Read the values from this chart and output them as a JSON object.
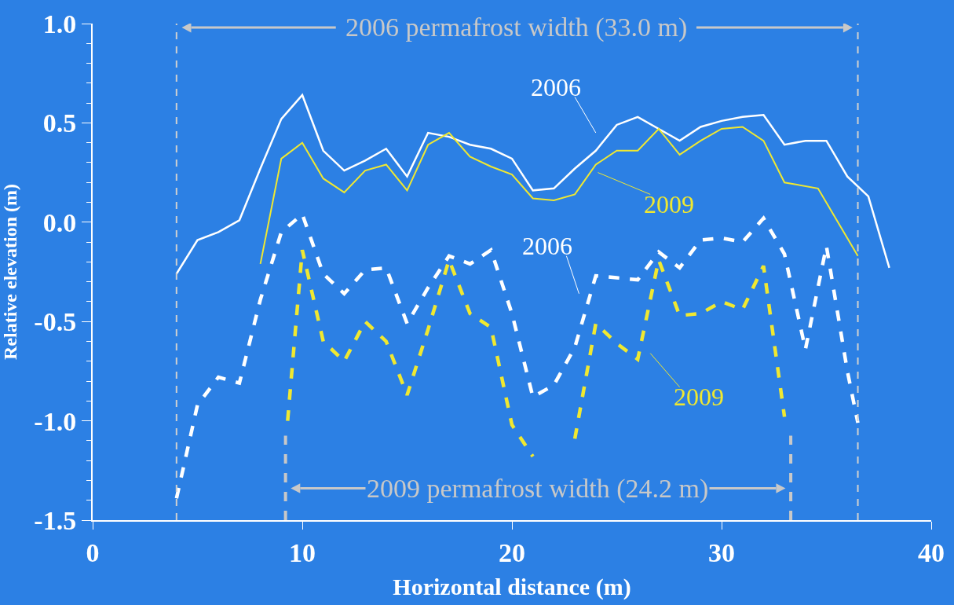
{
  "chart_data": {
    "type": "line",
    "xlabel": "Horizontal distance (m)",
    "ylabel": "Relative elevation (m)",
    "xlim": [
      0,
      40
    ],
    "xticks": [
      0,
      10,
      20,
      30,
      40
    ],
    "ylim": [
      -1.5,
      1.0
    ],
    "yticks": [
      {
        "value": 1.0,
        "label": "1.0"
      },
      0.5,
      {
        "value": 0.0,
        "label": "0.0"
      },
      -0.5,
      {
        "value": -1.0,
        "label": "-1.0"
      },
      -1.5
    ],
    "grid": false,
    "marker": "none",
    "series": [
      {
        "color": "#ffffff",
        "line_style": "solid",
        "x": [
          4,
          5,
          6,
          7,
          8,
          9,
          10,
          11,
          12,
          13,
          14,
          15,
          16,
          17,
          18,
          19,
          20,
          21,
          22,
          23,
          24,
          25,
          26,
          27,
          28,
          29,
          30,
          31,
          32,
          33,
          34,
          35,
          36,
          37,
          38
        ],
        "values": [
          -0.26,
          -0.09,
          -0.05,
          0.01,
          0.27,
          0.52,
          0.64,
          0.36,
          0.26,
          0.31,
          0.37,
          0.23,
          0.45,
          0.43,
          0.39,
          0.37,
          0.32,
          0.16,
          0.17,
          0.27,
          0.36,
          0.49,
          0.53,
          0.47,
          0.41,
          0.48,
          0.51,
          0.53,
          0.54,
          0.39,
          0.41,
          0.41,
          0.23,
          0.13,
          -0.23
        ]
      },
      {
        "color": "#f0e830",
        "line_style": "solid",
        "x": [
          8,
          9,
          10,
          11,
          12,
          13,
          14,
          15,
          16,
          17,
          18,
          19,
          20,
          21,
          22,
          23,
          24,
          25,
          26,
          27,
          28,
          29,
          30,
          31,
          32,
          33,
          34.6,
          36.5
        ],
        "values": [
          -0.21,
          0.32,
          0.4,
          0.22,
          0.15,
          0.26,
          0.29,
          0.16,
          0.39,
          0.45,
          0.33,
          0.28,
          0.24,
          0.12,
          0.11,
          0.14,
          0.29,
          0.36,
          0.36,
          0.47,
          0.34,
          0.41,
          0.47,
          0.48,
          0.41,
          0.2,
          0.17,
          -0.17
        ]
      },
      {
        "color": "#ffffff",
        "line_style": "dashed",
        "x": [
          4,
          5,
          6,
          7,
          8,
          9,
          10,
          11,
          12,
          13,
          14,
          15,
          16,
          17,
          18,
          19,
          20,
          21,
          22,
          23,
          24,
          25,
          26,
          27,
          28,
          29,
          30,
          31,
          32,
          33,
          34,
          35,
          36,
          36.5
        ],
        "values": [
          -1.39,
          -0.92,
          -0.78,
          -0.81,
          -0.39,
          -0.05,
          0.04,
          -0.26,
          -0.36,
          -0.24,
          -0.23,
          -0.51,
          -0.33,
          -0.17,
          -0.21,
          -0.14,
          -0.46,
          -0.88,
          -0.82,
          -0.63,
          -0.27,
          -0.28,
          -0.29,
          -0.15,
          -0.23,
          -0.09,
          -0.08,
          -0.1,
          0.02,
          -0.16,
          -0.64,
          -0.12,
          -0.75,
          -1.01
        ]
      },
      {
        "color": "#f0e830",
        "line_style": "dashed",
        "x": [
          9.3,
          10,
          11,
          12,
          13,
          14,
          15,
          16,
          17,
          18,
          19,
          20,
          21,
          22,
          23,
          24,
          25,
          26,
          27,
          28,
          29,
          30,
          31,
          32,
          33
        ],
        "values": [
          -1.0,
          -0.14,
          -0.6,
          -0.7,
          -0.5,
          -0.6,
          -0.87,
          -0.54,
          -0.19,
          -0.46,
          -0.53,
          -1.02,
          -1.18,
          null,
          -1.09,
          -0.51,
          -0.61,
          -0.69,
          -0.19,
          -0.47,
          -0.46,
          -0.4,
          -0.44,
          -0.22,
          -0.98
        ]
      }
    ],
    "ref_lines": [
      {
        "axis": "x",
        "value": 4.0,
        "color": "#d0d0d0",
        "line_style": "dashed"
      },
      {
        "axis": "x",
        "value": 36.5,
        "color": "#d0d0d0",
        "line_style": "dashed"
      },
      {
        "axis": "x",
        "value": 9.2,
        "color": "#c8c8c8",
        "line_style": "dashed"
      },
      {
        "axis": "x",
        "value": 33.3,
        "color": "#c8c8c8",
        "line_style": "dashed"
      }
    ],
    "annotations": [
      "2006 permafrost width (33.0 m)",
      "2009 permafrost width (24.2 m)",
      "2006",
      "2009",
      "2006",
      "2009"
    ]
  }
}
